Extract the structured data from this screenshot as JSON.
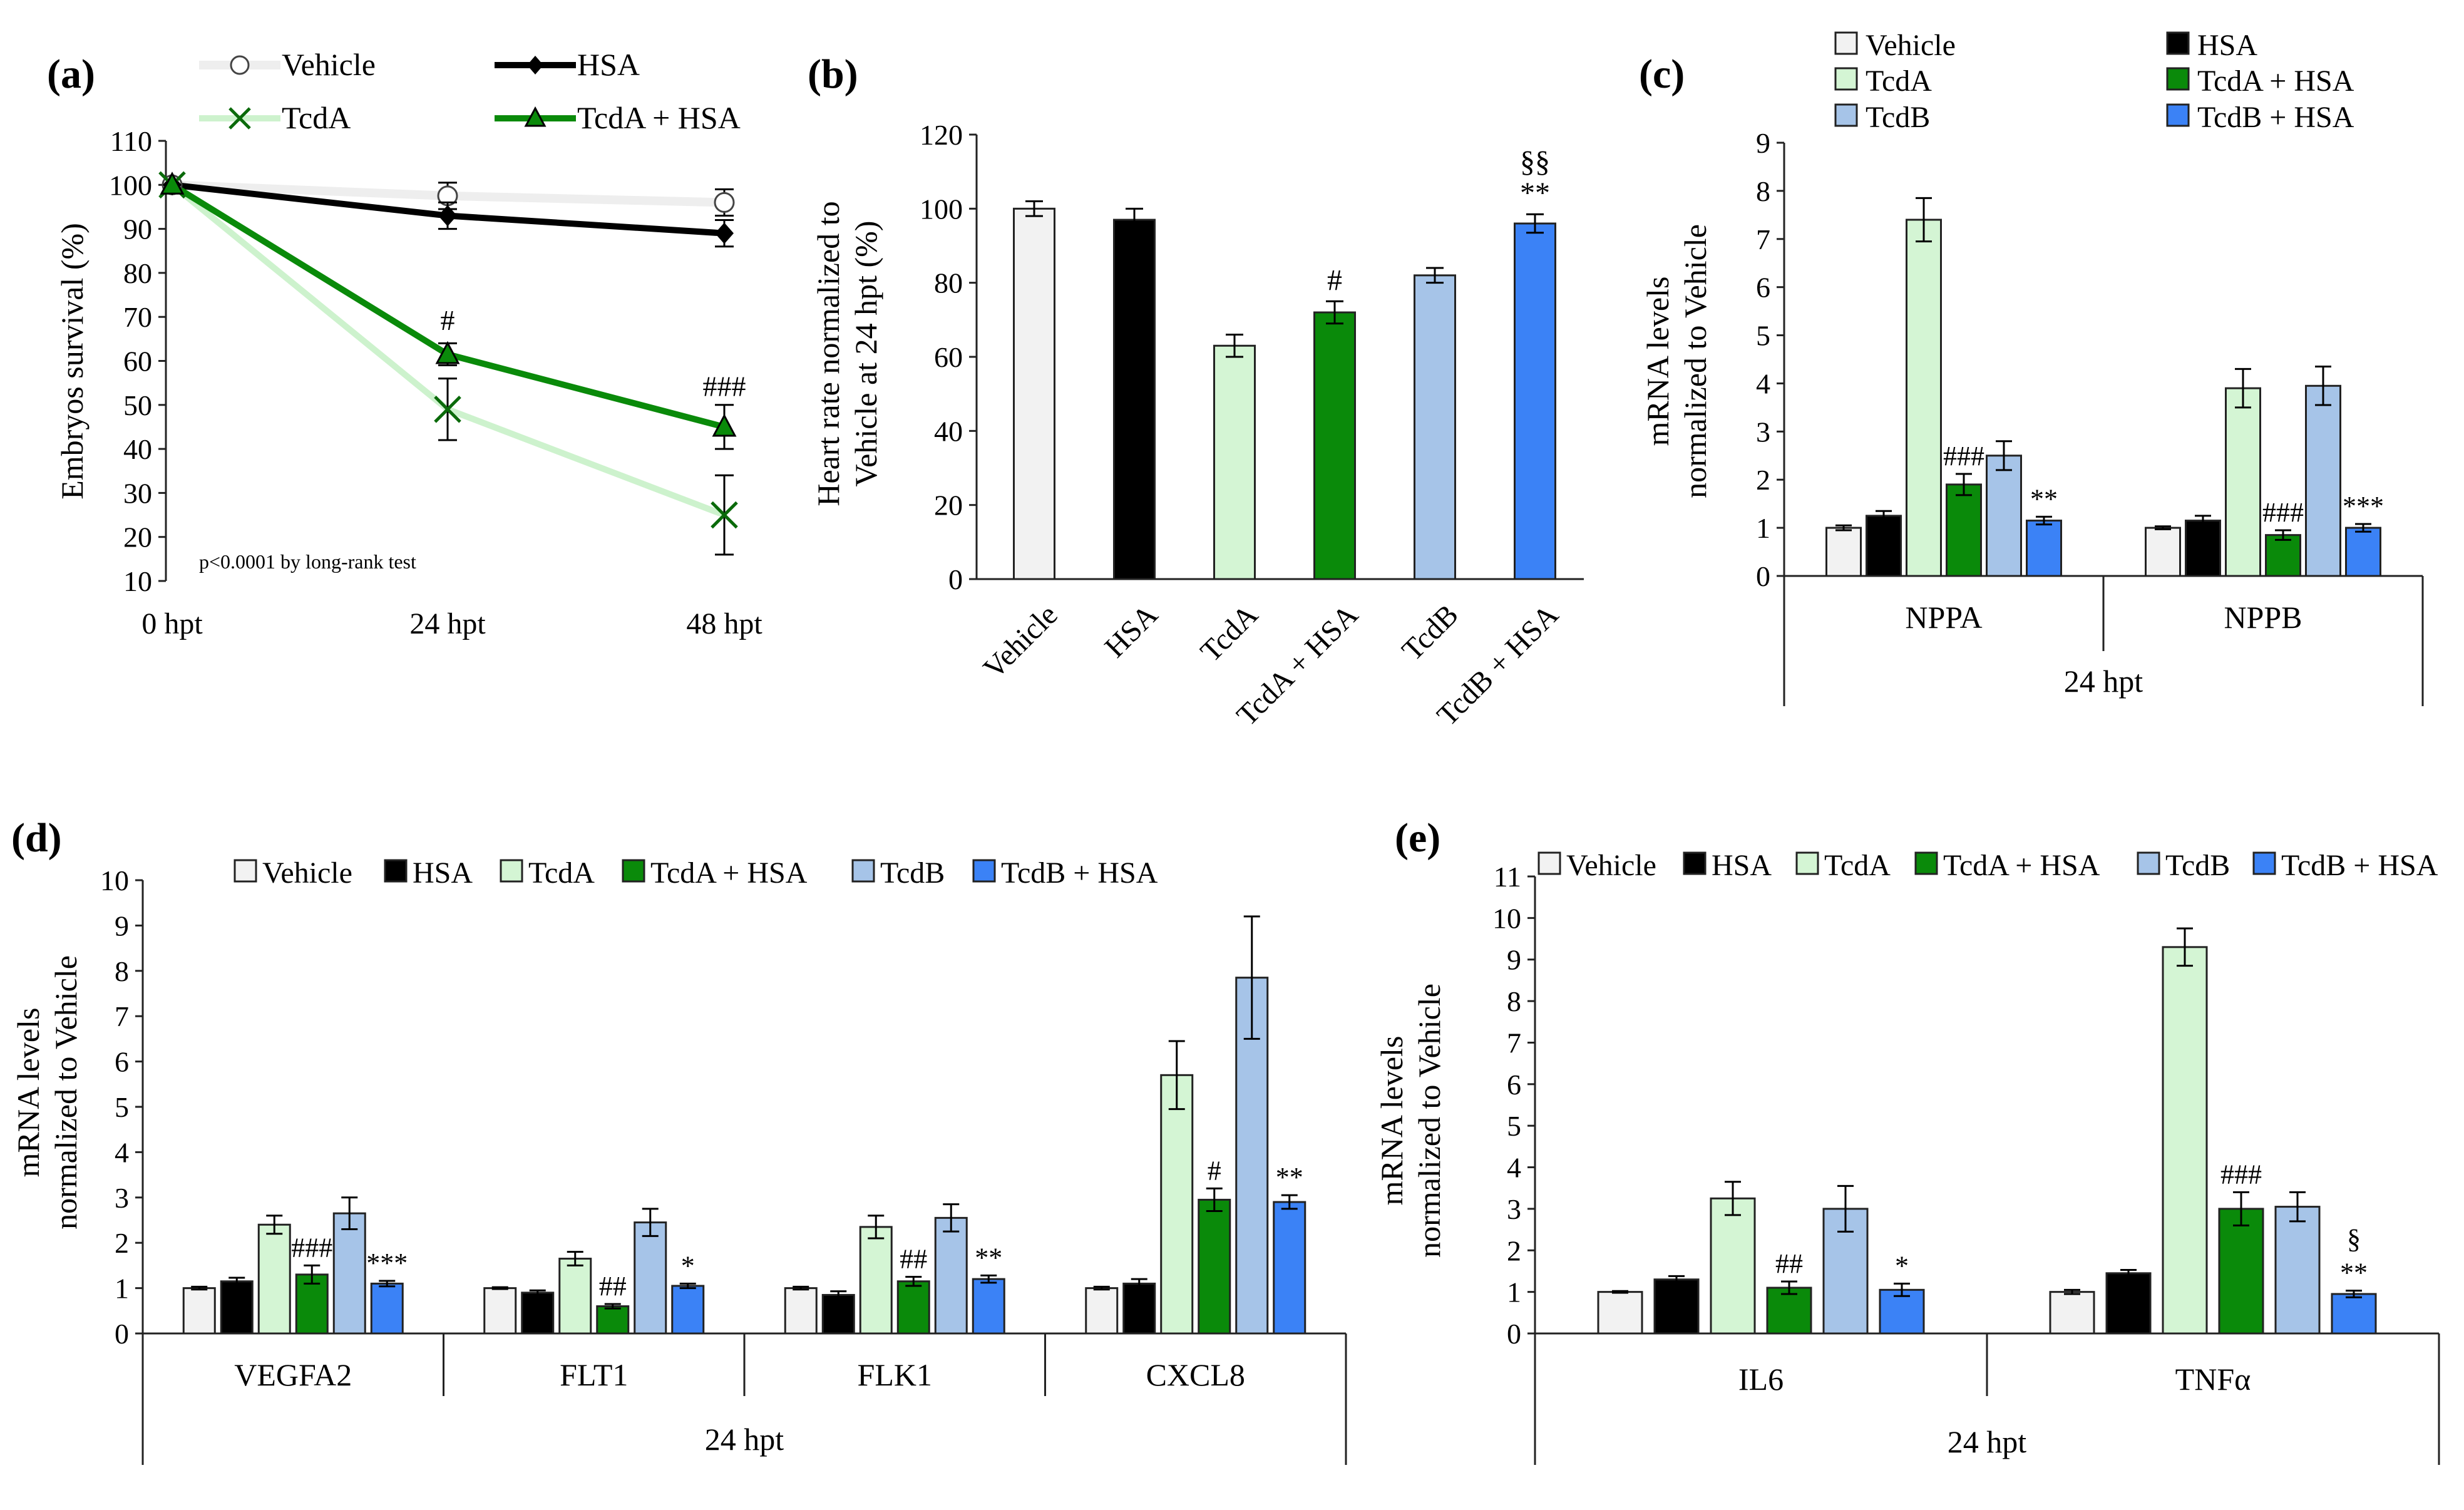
{
  "colors": {
    "Vehicle": "#f2f2f2",
    "HSA": "#000000",
    "TcdA": "#d4f5d4",
    "TcdA + HSA": "#0a8a0a",
    "TcdB": "#a6c4e8",
    "TcdB + HSA": "#3b82f6",
    "stroke": "#222222"
  },
  "chart_data": [
    {
      "id": "a",
      "panel_label": "(a)",
      "type": "line",
      "ylabel": "Embryos survival (%)",
      "ylim": [
        10,
        110
      ],
      "yticks": [
        10,
        20,
        30,
        40,
        50,
        60,
        70,
        80,
        90,
        100,
        110
      ],
      "categories": [
        "0 hpt",
        "24 hpt",
        "48 hpt"
      ],
      "annotation": "p<0.0001 by long-rank test",
      "series": [
        {
          "name": "Vehicle",
          "marker": "circle",
          "color": "#eeeeee",
          "values": [
            100,
            97.5,
            96
          ],
          "errors": [
            0,
            3,
            3
          ]
        },
        {
          "name": "HSA",
          "marker": "diamond",
          "color": "#000000",
          "values": [
            100,
            93,
            89
          ],
          "errors": [
            0,
            3,
            3
          ]
        },
        {
          "name": "TcdA",
          "marker": "x",
          "color": "#cdf2cd",
          "values": [
            100,
            49,
            25
          ],
          "errors": [
            0,
            7,
            9
          ]
        },
        {
          "name": "TcdA + HSA",
          "marker": "triangle",
          "color": "#0a8a0a",
          "values": [
            100,
            61.5,
            45
          ],
          "errors": [
            0,
            2.5,
            5
          ]
        }
      ],
      "labels": [
        {
          "category": "24 hpt",
          "value": 69,
          "text": "#"
        },
        {
          "category": "48 hpt",
          "value": 54,
          "text": "###"
        }
      ]
    },
    {
      "id": "b",
      "panel_label": "(b)",
      "type": "bar",
      "ylabel": [
        "Heart rate normalized to",
        "Vehicle at 24 hpt (%)"
      ],
      "ylim": [
        0,
        120
      ],
      "yticks": [
        0,
        20,
        40,
        60,
        80,
        100,
        120
      ],
      "categories": [
        "Vehicle",
        "HSA",
        "TcdA",
        "TcdA + HSA",
        "TcdB",
        "TcdB + HSA"
      ],
      "values": [
        100,
        97,
        63,
        72,
        82,
        96
      ],
      "errors": [
        2,
        3,
        3,
        3,
        2,
        2.5
      ],
      "labels": [
        {
          "index": 3,
          "lines": [
            "#"
          ]
        },
        {
          "index": 5,
          "lines": [
            "§§",
            "**"
          ]
        }
      ]
    },
    {
      "id": "c",
      "panel_label": "(c)",
      "type": "bar",
      "ylabel": [
        "mRNA levels",
        "normalized to Vehicle"
      ],
      "xlabel": "24 hpt",
      "ylim": [
        0,
        9
      ],
      "yticks": [
        0,
        1,
        2,
        3,
        4,
        5,
        6,
        7,
        8,
        9
      ],
      "categories": [
        "NPPA",
        "NPPB"
      ],
      "legend": [
        "Vehicle",
        "HSA",
        "TcdA",
        "TcdA + HSA",
        "TcdB",
        "TcdB + HSA"
      ],
      "series": [
        {
          "name": "Vehicle",
          "values": [
            1,
            1
          ],
          "errors": [
            0.05,
            0.03
          ]
        },
        {
          "name": "HSA",
          "values": [
            1.25,
            1.15
          ],
          "errors": [
            0.1,
            0.1
          ]
        },
        {
          "name": "TcdA",
          "values": [
            7.4,
            3.9
          ],
          "errors": [
            0.45,
            0.4
          ]
        },
        {
          "name": "TcdA + HSA",
          "values": [
            1.9,
            0.85
          ],
          "errors": [
            0.22,
            0.1
          ]
        },
        {
          "name": "TcdB",
          "values": [
            2.5,
            3.95
          ],
          "errors": [
            0.3,
            0.4
          ]
        },
        {
          "name": "TcdB + HSA",
          "values": [
            1.15,
            1.0
          ],
          "errors": [
            0.08,
            0.08
          ]
        }
      ],
      "labels": [
        {
          "category": 0,
          "series": 3,
          "text": "###"
        },
        {
          "category": 0,
          "series": 5,
          "text": "**"
        },
        {
          "category": 1,
          "series": 3,
          "text": "###"
        },
        {
          "category": 1,
          "series": 5,
          "text": "***"
        }
      ]
    },
    {
      "id": "d",
      "panel_label": "(d)",
      "type": "bar",
      "ylabel": [
        "mRNA levels",
        "normalized to Vehicle"
      ],
      "xlabel": "24 hpt",
      "ylim": [
        0,
        10
      ],
      "yticks": [
        0,
        1,
        2,
        3,
        4,
        5,
        6,
        7,
        8,
        9,
        10
      ],
      "categories": [
        "VEGFA2",
        "FLT1",
        "FLK1",
        "CXCL8"
      ],
      "legend": [
        "Vehicle",
        "HSA",
        "TcdA",
        "TcdA + HSA",
        "TcdB",
        "TcdB + HSA"
      ],
      "series": [
        {
          "name": "Vehicle",
          "values": [
            1,
            1,
            1,
            1
          ],
          "errors": [
            0.03,
            0.02,
            0.03,
            0.03
          ]
        },
        {
          "name": "HSA",
          "values": [
            1.15,
            0.9,
            0.85,
            1.1
          ],
          "errors": [
            0.08,
            0.05,
            0.08,
            0.1
          ]
        },
        {
          "name": "TcdA",
          "values": [
            2.4,
            1.65,
            2.35,
            5.7
          ],
          "errors": [
            0.2,
            0.15,
            0.25,
            0.75
          ]
        },
        {
          "name": "TcdA + HSA",
          "values": [
            1.3,
            0.6,
            1.15,
            2.95
          ],
          "errors": [
            0.2,
            0.05,
            0.1,
            0.25
          ]
        },
        {
          "name": "TcdB",
          "values": [
            2.65,
            2.45,
            2.55,
            7.85
          ],
          "errors": [
            0.35,
            0.3,
            0.3,
            1.35
          ]
        },
        {
          "name": "TcdB + HSA",
          "values": [
            1.1,
            1.05,
            1.2,
            2.9
          ],
          "errors": [
            0.06,
            0.05,
            0.08,
            0.15
          ]
        }
      ],
      "labels": [
        {
          "category": 0,
          "series": 3,
          "text": "###"
        },
        {
          "category": 0,
          "series": 5,
          "text": "***"
        },
        {
          "category": 1,
          "series": 3,
          "text": "##"
        },
        {
          "category": 1,
          "series": 5,
          "text": "*"
        },
        {
          "category": 2,
          "series": 3,
          "text": "##"
        },
        {
          "category": 2,
          "series": 5,
          "text": "**"
        },
        {
          "category": 3,
          "series": 3,
          "text": "#"
        },
        {
          "category": 3,
          "series": 5,
          "text": "**"
        }
      ]
    },
    {
      "id": "e",
      "panel_label": "(e)",
      "type": "bar",
      "ylabel": [
        "mRNA levels",
        "normalized to Vehicle"
      ],
      "xlabel": "24 hpt",
      "ylim": [
        0,
        11
      ],
      "yticks": [
        0,
        1,
        2,
        3,
        4,
        5,
        6,
        7,
        8,
        9,
        10,
        11
      ],
      "categories": [
        "IL6",
        "TNFα"
      ],
      "legend": [
        "Vehicle",
        "HSA",
        "TcdA",
        "TcdA + HSA",
        "TcdB",
        "TcdB + HSA"
      ],
      "series": [
        {
          "name": "Vehicle",
          "values": [
            1,
            1
          ],
          "errors": [
            0.02,
            0.05
          ]
        },
        {
          "name": "HSA",
          "values": [
            1.3,
            1.45
          ],
          "errors": [
            0.08,
            0.08
          ]
        },
        {
          "name": "TcdA",
          "values": [
            3.25,
            9.3
          ],
          "errors": [
            0.4,
            0.45
          ]
        },
        {
          "name": "TcdA + HSA",
          "values": [
            1.1,
            3.0
          ],
          "errors": [
            0.15,
            0.4
          ]
        },
        {
          "name": "TcdB",
          "values": [
            3.0,
            3.05
          ],
          "errors": [
            0.55,
            0.35
          ]
        },
        {
          "name": "TcdB + HSA",
          "values": [
            1.05,
            0.95
          ],
          "errors": [
            0.15,
            0.08
          ]
        }
      ],
      "labels": [
        {
          "category": 0,
          "series": 3,
          "text": "##"
        },
        {
          "category": 0,
          "series": 5,
          "text": "*"
        },
        {
          "category": 1,
          "series": 3,
          "text": "###"
        },
        {
          "category": 1,
          "series": 5,
          "text": "**"
        },
        {
          "category": 1,
          "series": 5,
          "text": "§",
          "stack": 1
        }
      ]
    }
  ]
}
